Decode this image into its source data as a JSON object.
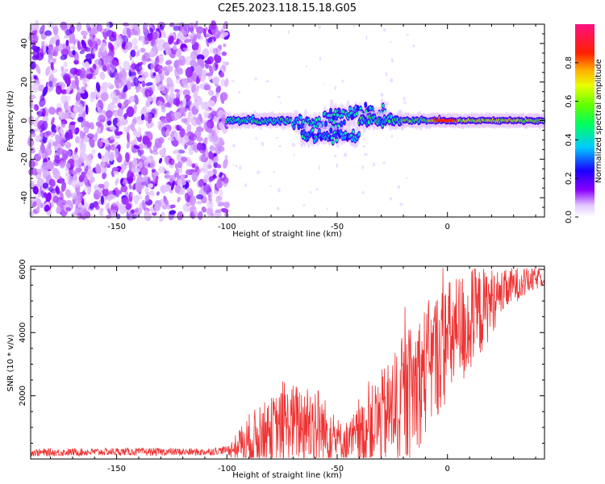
{
  "title": "C2E5.2023.118.15.18.G05",
  "chart_data": [
    {
      "type": "heatmap",
      "xlabel": "Height of straight line (km)",
      "ylabel": "Frequency (Hz)",
      "xlim": [
        -189,
        44
      ],
      "ylim": [
        -50,
        50
      ],
      "x_ticks": [
        -150,
        -100,
        -50,
        0
      ],
      "x_tick_labels": [
        "-150",
        "-100",
        "-50",
        "0"
      ],
      "y_ticks": [
        -40,
        -20,
        0,
        20,
        40
      ],
      "y_tick_labels": [
        "-40",
        "-20",
        "0",
        "20",
        "40"
      ],
      "colorbar": {
        "label": "Normalized spectral amplitude",
        "range": [
          0,
          1
        ],
        "ticks": [
          0.0,
          0.2,
          0.4,
          0.6,
          0.8
        ],
        "tick_labels": [
          "0.0",
          "0.2",
          "0.4",
          "0.6",
          "0.8"
        ],
        "colormap": "rainbow (white at 0, violet, blue, cyan, green, yellow, orange, red, magenta at 1)"
      },
      "regions": [
        {
          "x_range": [
            -189,
            -100
          ],
          "pattern": "broadband noise",
          "freq_range": [
            -50,
            50
          ],
          "amplitude": [
            0.05,
            0.25
          ]
        },
        {
          "x_range": [
            -100,
            -70
          ],
          "pattern": "signal line",
          "center_freq": 0,
          "amplitude": [
            0.3,
            0.55
          ]
        },
        {
          "x_range": [
            -70,
            -20
          ],
          "pattern": "split/spread signal",
          "center_freq": -2,
          "amplitude": [
            0.25,
            0.5
          ]
        },
        {
          "x_range": [
            -20,
            44
          ],
          "pattern": "steady signal line",
          "center_freq": 0,
          "amplitude": [
            0.5,
            0.95
          ]
        }
      ],
      "grid": false
    },
    {
      "type": "line",
      "xlabel": "Height of straight line (km)",
      "ylabel": "SNR (10 * v/v)",
      "xlim": [
        -189,
        44
      ],
      "ylim": [
        0,
        6100
      ],
      "x_ticks": [
        -150,
        -100,
        -50,
        0
      ],
      "x_tick_labels": [
        "-150",
        "-100",
        "-50",
        "0"
      ],
      "y_ticks": [
        2000,
        4000,
        6000
      ],
      "y_tick_labels": [
        "2000",
        "4000",
        "6000"
      ],
      "color": "#ee3333",
      "trend": [
        {
          "x": -189,
          "y": 200
        },
        {
          "x": -150,
          "y": 230
        },
        {
          "x": -110,
          "y": 220
        },
        {
          "x": -98,
          "y": 300
        },
        {
          "x": -90,
          "y": 550
        },
        {
          "x": -80,
          "y": 900
        },
        {
          "x": -70,
          "y": 1150
        },
        {
          "x": -60,
          "y": 1100
        },
        {
          "x": -52,
          "y": 650
        },
        {
          "x": -45,
          "y": 500
        },
        {
          "x": -40,
          "y": 700
        },
        {
          "x": -30,
          "y": 1300
        },
        {
          "x": -20,
          "y": 1800
        },
        {
          "x": -12,
          "y": 2600
        },
        {
          "x": -5,
          "y": 3300
        },
        {
          "x": 0,
          "y": 3700
        },
        {
          "x": 10,
          "y": 4300
        },
        {
          "x": 20,
          "y": 5000
        },
        {
          "x": 30,
          "y": 5500
        },
        {
          "x": 44,
          "y": 5750
        }
      ],
      "noise_amplitude": [
        {
          "x": -189,
          "amp": 120
        },
        {
          "x": -100,
          "amp": 120
        },
        {
          "x": -90,
          "amp": 900
        },
        {
          "x": -60,
          "amp": 1400
        },
        {
          "x": -48,
          "amp": 600
        },
        {
          "x": -30,
          "amp": 1500
        },
        {
          "x": -15,
          "amp": 2200
        },
        {
          "x": 10,
          "amp": 1800
        },
        {
          "x": 25,
          "amp": 700
        },
        {
          "x": 44,
          "amp": 250
        }
      ],
      "grid": false
    }
  ]
}
